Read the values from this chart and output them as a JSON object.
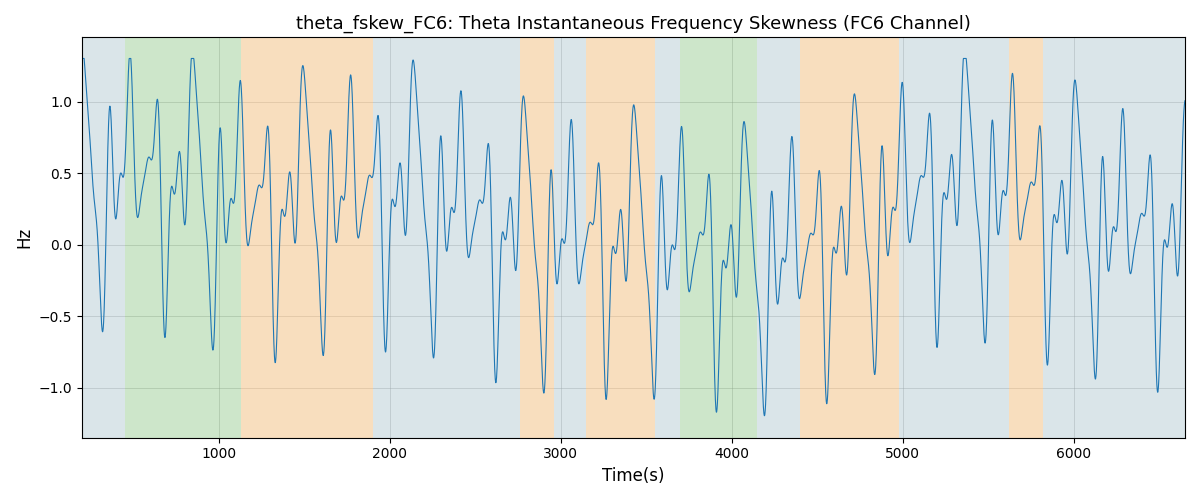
{
  "title": "theta_fskew_FC6: Theta Instantaneous Frequency Skewness (FC6 Channel)",
  "xlabel": "Time(s)",
  "ylabel": "Hz",
  "xlim": [
    200,
    6650
  ],
  "ylim": [
    -1.35,
    1.45
  ],
  "line_color": "#1f77b4",
  "line_width": 0.8,
  "bg_bands": [
    {
      "xmin": 200,
      "xmax": 450,
      "color": "#aec6cf",
      "alpha": 0.45
    },
    {
      "xmin": 450,
      "xmax": 1130,
      "color": "#90c88a",
      "alpha": 0.45
    },
    {
      "xmin": 1130,
      "xmax": 1900,
      "color": "#f4c48a",
      "alpha": 0.55
    },
    {
      "xmin": 1900,
      "xmax": 2760,
      "color": "#aec6cf",
      "alpha": 0.45
    },
    {
      "xmin": 2760,
      "xmax": 2960,
      "color": "#f4c48a",
      "alpha": 0.55
    },
    {
      "xmin": 2960,
      "xmax": 3150,
      "color": "#aec6cf",
      "alpha": 0.45
    },
    {
      "xmin": 3150,
      "xmax": 3550,
      "color": "#f4c48a",
      "alpha": 0.55
    },
    {
      "xmin": 3550,
      "xmax": 3700,
      "color": "#aec6cf",
      "alpha": 0.45
    },
    {
      "xmin": 3700,
      "xmax": 4150,
      "color": "#90c88a",
      "alpha": 0.45
    },
    {
      "xmin": 4150,
      "xmax": 4400,
      "color": "#aec6cf",
      "alpha": 0.45
    },
    {
      "xmin": 4400,
      "xmax": 4980,
      "color": "#f4c48a",
      "alpha": 0.55
    },
    {
      "xmin": 4980,
      "xmax": 5620,
      "color": "#aec6cf",
      "alpha": 0.45
    },
    {
      "xmin": 5620,
      "xmax": 5820,
      "color": "#f4c48a",
      "alpha": 0.55
    },
    {
      "xmin": 5820,
      "xmax": 6650,
      "color": "#aec6cf",
      "alpha": 0.45
    }
  ],
  "xticks": [
    1000,
    2000,
    3000,
    4000,
    5000,
    6000
  ],
  "yticks": [
    -1.0,
    -0.5,
    0.0,
    0.5,
    1.0
  ],
  "seed": 42,
  "n_points": 6000
}
